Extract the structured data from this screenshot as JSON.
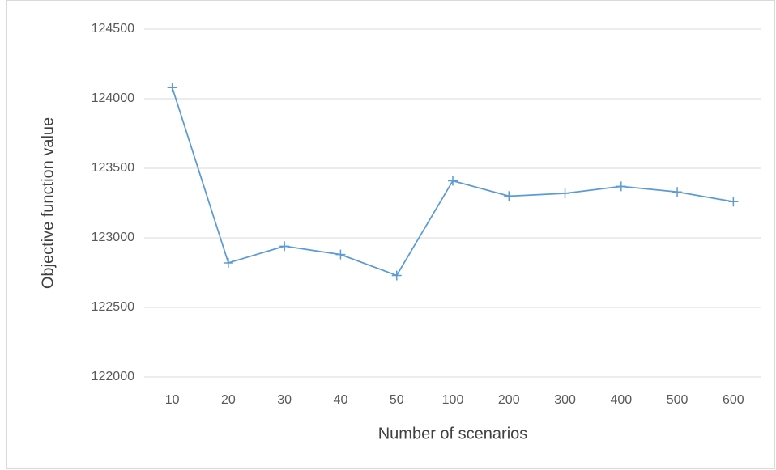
{
  "chart_data": {
    "type": "line",
    "x_label": "Number of scenarios",
    "y_label": "Objective function value",
    "categories": [
      "10",
      "20",
      "30",
      "40",
      "50",
      "100",
      "200",
      "300",
      "400",
      "500",
      "600"
    ],
    "values": [
      124080,
      122820,
      122940,
      122880,
      122730,
      123410,
      123300,
      123320,
      123370,
      123330,
      123260
    ],
    "color": "#5b9bd5",
    "ylim": [
      122000,
      124500
    ],
    "yticks": [
      122000,
      122500,
      123000,
      123500,
      124000,
      124500
    ],
    "grid": true
  }
}
